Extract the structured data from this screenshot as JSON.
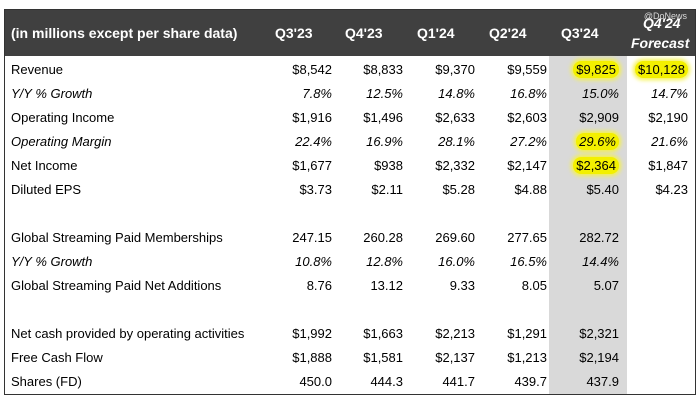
{
  "watermark": "@DoNews",
  "header": {
    "label": "(in millions except per share data)",
    "cols": [
      "Q3'23",
      "Q4'23",
      "Q1'24",
      "Q2'24",
      "Q3'24"
    ],
    "forecast_line1": "Q4'24",
    "forecast_line2": "Forecast"
  },
  "highlight_color": "#f3f000",
  "shade_color": "#d9d9d9",
  "rows": [
    {
      "label": "Revenue",
      "v": [
        "$8,542",
        "$8,833",
        "$9,370",
        "$9,559",
        "$9,825",
        "$10,128"
      ],
      "italic": false
    },
    {
      "label": "Y/Y % Growth",
      "v": [
        "7.8%",
        "12.5%",
        "14.8%",
        "16.8%",
        "15.0%",
        "14.7%"
      ],
      "italic": true
    },
    {
      "label": "Operating Income",
      "v": [
        "$1,916",
        "$1,496",
        "$2,633",
        "$2,603",
        "$2,909",
        "$2,190"
      ],
      "italic": false
    },
    {
      "label": "Operating Margin",
      "v": [
        "22.4%",
        "16.9%",
        "28.1%",
        "27.2%",
        "29.6%",
        "21.6%"
      ],
      "italic": true
    },
    {
      "label": "Net Income",
      "v": [
        "$1,677",
        "$938",
        "$2,332",
        "$2,147",
        "$2,364",
        "$1,847"
      ],
      "italic": false
    },
    {
      "label": "Diluted EPS",
      "v": [
        "$3.73",
        "$2.11",
        "$5.28",
        "$4.88",
        "$5.40",
        "$4.23"
      ],
      "italic": false
    },
    {
      "label": "Global Streaming Paid Memberships",
      "v": [
        "247.15",
        "260.28",
        "269.60",
        "277.65",
        "282.72",
        ""
      ],
      "italic": false
    },
    {
      "label": "Y/Y % Growth",
      "v": [
        "10.8%",
        "12.8%",
        "16.0%",
        "16.5%",
        "14.4%",
        ""
      ],
      "italic": true
    },
    {
      "label": "Global Streaming Paid Net Additions",
      "v": [
        "8.76",
        "13.12",
        "9.33",
        "8.05",
        "5.07",
        ""
      ],
      "italic": false
    },
    {
      "label": "Net cash provided by operating activities",
      "v": [
        "$1,992",
        "$1,663",
        "$2,213",
        "$1,291",
        "$2,321",
        ""
      ],
      "italic": false
    },
    {
      "label": "Free Cash Flow",
      "v": [
        "$1,888",
        "$1,581",
        "$2,137",
        "$1,213",
        "$2,194",
        ""
      ],
      "italic": false
    },
    {
      "label": "Shares (FD)",
      "v": [
        "450.0",
        "444.3",
        "441.7",
        "439.7",
        "437.9",
        ""
      ],
      "italic": false
    }
  ]
}
